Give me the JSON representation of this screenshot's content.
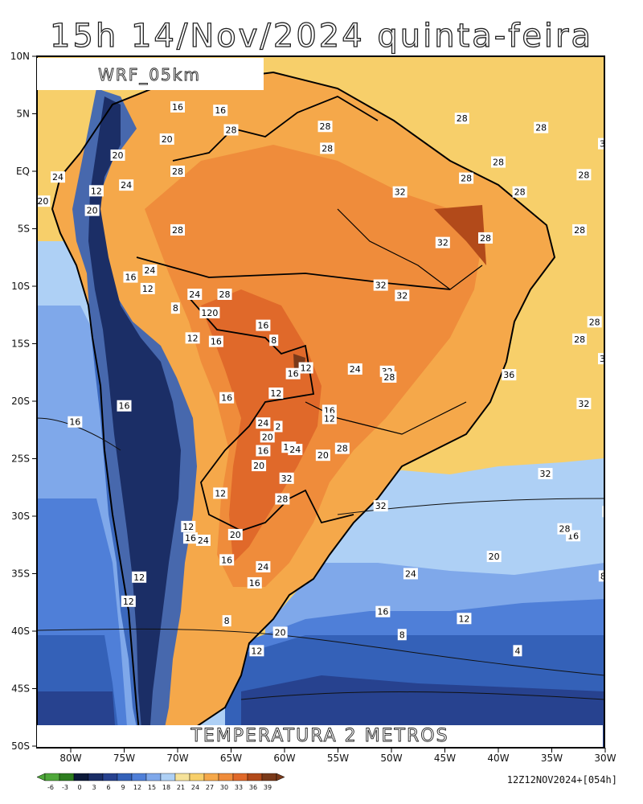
{
  "title": "15h 14/Nov/2024 quinta-feira",
  "model_label": "WRF_05km",
  "variable_label": "TEMPERATURA 2 METROS",
  "run_info": "12Z12NOV2024+[054h]",
  "lat_labels": [
    "10N",
    "5N",
    "EQ",
    "5S",
    "10S",
    "15S",
    "20S",
    "25S",
    "30S",
    "35S",
    "40S",
    "45S",
    "50S"
  ],
  "lon_labels": [
    "80W",
    "75W",
    "70W",
    "65W",
    "60W",
    "55W",
    "50W",
    "45W",
    "40W",
    "35W",
    "30W"
  ],
  "colorbar": {
    "ticks": [
      "-6",
      "-3",
      "0",
      "3",
      "6",
      "9",
      "12",
      "15",
      "18",
      "21",
      "24",
      "27",
      "30",
      "33",
      "36",
      "39"
    ],
    "colors": [
      "#4fa83a",
      "#2e7d1f",
      "#0d1a3a",
      "#1b2e66",
      "#27428f",
      "#3461b8",
      "#4f7fd8",
      "#7fa8ea",
      "#aed0f5",
      "#f5e29a",
      "#f7cf6a",
      "#f5a84a",
      "#ef8c3b",
      "#e0692a",
      "#b24a1a",
      "#7a3a1a"
    ]
  },
  "contour_labels": [
    {
      "text": "28",
      "lon": -54,
      "lat": 6.2
    },
    {
      "text": "28",
      "lon": -58,
      "lat": 3.8
    },
    {
      "text": "28",
      "lon": -61.7,
      "lat": 4.6
    },
    {
      "text": "32",
      "lon": -55,
      "lat": 2.4
    },
    {
      "text": "28",
      "lon": -68,
      "lat": 2.0
    },
    {
      "text": "28",
      "lon": -60,
      "lat": 0.8
    },
    {
      "text": "28",
      "lon": -56,
      "lat": -0.3
    },
    {
      "text": "32",
      "lon": -51,
      "lat": 0.2
    },
    {
      "text": "28",
      "lon": -47,
      "lat": -0.3
    },
    {
      "text": "32",
      "lon": -54,
      "lat": -1.2
    },
    {
      "text": "28",
      "lon": -61.5,
      "lat": -0.6
    },
    {
      "text": "28",
      "lon": -59,
      "lat": -1.8
    },
    {
      "text": "32",
      "lon": -64.6,
      "lat": -1.8
    },
    {
      "text": "16",
      "lon": -75,
      "lat": 5.6
    },
    {
      "text": "16",
      "lon": -73,
      "lat": 5.3
    },
    {
      "text": "28",
      "lon": -72.5,
      "lat": 3.6
    },
    {
      "text": "20",
      "lon": -75.5,
      "lat": 2.8
    },
    {
      "text": "28",
      "lon": -68.1,
      "lat": 3.9
    },
    {
      "text": "20",
      "lon": -77.8,
      "lat": 1.4
    },
    {
      "text": "28",
      "lon": -75,
      "lat": 0.0
    },
    {
      "text": "24",
      "lon": -80.6,
      "lat": -0.5
    },
    {
      "text": "24",
      "lon": -77.4,
      "lat": -1.2
    },
    {
      "text": "12",
      "lon": -78.8,
      "lat": -1.7
    },
    {
      "text": "20",
      "lon": -81.3,
      "lat": -2.6
    },
    {
      "text": "20",
      "lon": -79,
      "lat": -3.4
    },
    {
      "text": "28",
      "lon": -75,
      "lat": -5.1
    },
    {
      "text": "36",
      "lon": -45.2,
      "lat": -2.6
    },
    {
      "text": "32",
      "lon": -42.6,
      "lat": -2.4
    },
    {
      "text": "28",
      "lon": -56.2,
      "lat": -5.1
    },
    {
      "text": "28",
      "lon": -54.3,
      "lat": -5.2
    },
    {
      "text": "32",
      "lon": -49.6,
      "lat": -5.3
    },
    {
      "text": "32",
      "lon": -62.6,
      "lat": -6.2
    },
    {
      "text": "28",
      "lon": -60.6,
      "lat": -5.8
    },
    {
      "text": "32",
      "lon": -65.5,
      "lat": -9.9
    },
    {
      "text": "28",
      "lon": -50,
      "lat": -10.0
    },
    {
      "text": "28",
      "lon": -48.1,
      "lat": -9.9
    },
    {
      "text": "28",
      "lon": -35.5,
      "lat": -9.0
    },
    {
      "text": "32",
      "lon": -43.6,
      "lat": -10.3
    },
    {
      "text": "32",
      "lon": -64.5,
      "lat": -10.8
    },
    {
      "text": "28",
      "lon": -52,
      "lat": -10.5
    },
    {
      "text": "24",
      "lon": -76.3,
      "lat": -8.6
    },
    {
      "text": "16",
      "lon": -77.2,
      "lat": -9.2
    },
    {
      "text": "12",
      "lon": -76.4,
      "lat": -10.2
    },
    {
      "text": "24",
      "lon": -74.2,
      "lat": -10.7
    },
    {
      "text": "28",
      "lon": -72.8,
      "lat": -10.7
    },
    {
      "text": "8",
      "lon": -75.1,
      "lat": -11.9
    },
    {
      "text": "120",
      "lon": -73.5,
      "lat": -12.3
    },
    {
      "text": "32",
      "lon": -39.8,
      "lat": -12.2
    },
    {
      "text": "28",
      "lon": -42.1,
      "lat": -12.8
    },
    {
      "text": "28",
      "lon": -55.5,
      "lat": -13.1
    },
    {
      "text": "28",
      "lon": -51.9,
      "lat": -13.2
    },
    {
      "text": "28",
      "lon": -46,
      "lat": -13.4
    },
    {
      "text": "16",
      "lon": -71,
      "lat": -13.4
    },
    {
      "text": "12",
      "lon": -74.3,
      "lat": -14.5
    },
    {
      "text": "16",
      "lon": -73.2,
      "lat": -14.8
    },
    {
      "text": "8",
      "lon": -70.5,
      "lat": -14.7
    },
    {
      "text": "28",
      "lon": -56.2,
      "lat": -14.6
    },
    {
      "text": "24",
      "lon": -48.8,
      "lat": -15.0
    },
    {
      "text": "24",
      "lon": -45.8,
      "lat": -15.9
    },
    {
      "text": "32",
      "lon": -55,
      "lat": -16.3
    },
    {
      "text": "28",
      "lon": -38,
      "lat": -16.8
    },
    {
      "text": "24",
      "lon": -32.5,
      "lat": -16.4
    },
    {
      "text": "12",
      "lon": -69,
      "lat": -17.1
    },
    {
      "text": "24",
      "lon": -66.7,
      "lat": -17.2
    },
    {
      "text": "32",
      "lon": -65.2,
      "lat": -17.4
    },
    {
      "text": "16",
      "lon": -69.6,
      "lat": -17.6
    },
    {
      "text": "28",
      "lon": -50.8,
      "lat": -17.3
    },
    {
      "text": "36",
      "lon": -59.5,
      "lat": -17.7
    },
    {
      "text": "28",
      "lon": -65.1,
      "lat": -17.9
    },
    {
      "text": "20",
      "lon": -43.9,
      "lat": -18.1
    },
    {
      "text": "24",
      "lon": -40.3,
      "lat": -19.2
    },
    {
      "text": "16",
      "lon": -72.7,
      "lat": -19.7
    },
    {
      "text": "12",
      "lon": -70.4,
      "lat": -19.3
    },
    {
      "text": "32",
      "lon": -56,
      "lat": -20.2
    },
    {
      "text": "16",
      "lon": -77.5,
      "lat": -20.4
    },
    {
      "text": "16",
      "lon": -67.9,
      "lat": -20.8
    },
    {
      "text": "12",
      "lon": -67.9,
      "lat": -21.5
    },
    {
      "text": "28",
      "lon": -52.4,
      "lat": -22.4
    },
    {
      "text": "24",
      "lon": -50.8,
      "lat": -22.6
    },
    {
      "text": "24",
      "lon": -71,
      "lat": -21.9
    },
    {
      "text": "2",
      "lon": -70.3,
      "lat": -22.2
    },
    {
      "text": "16",
      "lon": -79.8,
      "lat": -21.8
    },
    {
      "text": "20",
      "lon": -38.5,
      "lat": -25.0
    },
    {
      "text": "20",
      "lon": -70.8,
      "lat": -23.1
    },
    {
      "text": "12",
      "lon": -69.8,
      "lat": -24.0
    },
    {
      "text": "28",
      "lon": -67.3,
      "lat": -24.1
    },
    {
      "text": "16",
      "lon": -71,
      "lat": -24.3
    },
    {
      "text": "24",
      "lon": -69.5,
      "lat": -24.2
    },
    {
      "text": "20",
      "lon": -68.2,
      "lat": -24.7
    },
    {
      "text": "20",
      "lon": -71.2,
      "lat": -25.6
    },
    {
      "text": "32",
      "lon": -57.8,
      "lat": -26.3
    },
    {
      "text": "28",
      "lon": -54.2,
      "lat": -26.5
    },
    {
      "text": "20",
      "lon": -45,
      "lat": -26.8
    },
    {
      "text": "32",
      "lon": -69.9,
      "lat": -26.7
    },
    {
      "text": "12",
      "lon": -73,
      "lat": -28.0
    },
    {
      "text": "28",
      "lon": -70.1,
      "lat": -28.5
    },
    {
      "text": "32",
      "lon": -65.5,
      "lat": -29.1
    },
    {
      "text": "24",
      "lon": -54.8,
      "lat": -29.6
    },
    {
      "text": "12",
      "lon": -74.5,
      "lat": -30.9
    },
    {
      "text": "16",
      "lon": -74.4,
      "lat": -31.9
    },
    {
      "text": "24",
      "lon": -73.8,
      "lat": -32.1
    },
    {
      "text": "20",
      "lon": -72.3,
      "lat": -31.6
    },
    {
      "text": "16",
      "lon": -56.5,
      "lat": -31.7
    },
    {
      "text": "16",
      "lon": -44.3,
      "lat": -31.2
    },
    {
      "text": "16",
      "lon": -72.7,
      "lat": -33.8
    },
    {
      "text": "28",
      "lon": -56.9,
      "lat": -31.1
    },
    {
      "text": "20",
      "lon": -60.2,
      "lat": -33.5
    },
    {
      "text": "12",
      "lon": -76.8,
      "lat": -35.3
    },
    {
      "text": "8",
      "lon": -55.1,
      "lat": -35.2
    },
    {
      "text": "24",
      "lon": -71,
      "lat": -34.4
    },
    {
      "text": "12",
      "lon": -54,
      "lat": -35.2
    },
    {
      "text": "12",
      "lon": -42.4,
      "lat": -34.3
    },
    {
      "text": "8",
      "lon": -41.4,
      "lat": -35.7
    },
    {
      "text": "16",
      "lon": -71.4,
      "lat": -35.8
    },
    {
      "text": "24",
      "lon": -64.1,
      "lat": -35.0
    },
    {
      "text": "12",
      "lon": -77.3,
      "lat": -37.4
    },
    {
      "text": "16",
      "lon": -65.4,
      "lat": -38.3
    },
    {
      "text": "12",
      "lon": -61.6,
      "lat": -38.9
    },
    {
      "text": "8",
      "lon": -72.7,
      "lat": -39.1
    },
    {
      "text": "20",
      "lon": -70.2,
      "lat": -40.1
    },
    {
      "text": "4",
      "lon": -59.1,
      "lat": -41.7
    },
    {
      "text": "12",
      "lon": -71.3,
      "lat": -41.7
    },
    {
      "text": "8",
      "lon": -64.5,
      "lat": -40.3
    },
    {
      "text": "4",
      "lon": -41.4,
      "lat": -41.8
    }
  ]
}
